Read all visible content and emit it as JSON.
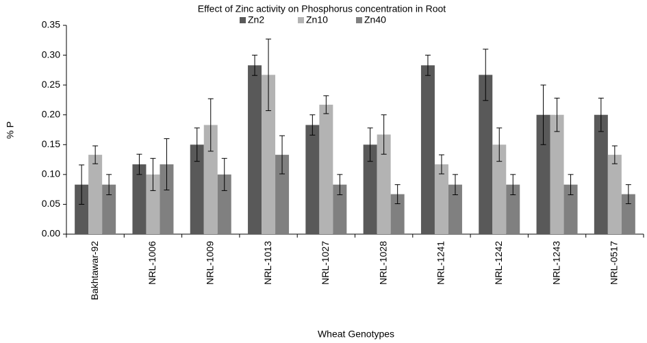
{
  "chart_data": {
    "type": "bar",
    "title": "Effect of Zinc activity on Phosphorus concentration in Root",
    "x_label": "Wheat Genotypes",
    "y_label": "% P",
    "categories": [
      "Bakhtawar-92",
      "NRL-1006",
      "NRL-1009",
      "NRL-1013",
      "NRL-1027",
      "NRL-1028",
      "NRL-1241",
      "NRL-1242",
      "NRL-1243",
      "NRL-0517"
    ],
    "series": [
      {
        "name": "Zn2",
        "color": "#595959",
        "values": [
          0.083,
          0.117,
          0.15,
          0.283,
          0.183,
          0.15,
          0.283,
          0.267,
          0.2,
          0.2
        ],
        "errors": [
          0.033,
          0.017,
          0.028,
          0.017,
          0.017,
          0.028,
          0.017,
          0.043,
          0.05,
          0.028
        ]
      },
      {
        "name": "Zn10",
        "color": "#b3b3b3",
        "values": [
          0.133,
          0.1,
          0.183,
          0.267,
          0.217,
          0.167,
          0.117,
          0.15,
          0.2,
          0.133
        ],
        "errors": [
          0.015,
          0.027,
          0.044,
          0.06,
          0.015,
          0.033,
          0.016,
          0.028,
          0.028,
          0.015
        ]
      },
      {
        "name": "Zn40",
        "color": "#808080",
        "values": [
          0.083,
          0.117,
          0.1,
          0.133,
          0.083,
          0.067,
          0.083,
          0.083,
          0.083,
          0.067
        ],
        "errors": [
          0.017,
          0.043,
          0.027,
          0.032,
          0.017,
          0.016,
          0.017,
          0.017,
          0.017,
          0.016
        ]
      }
    ],
    "ylim": [
      0,
      0.35
    ],
    "yticks": [
      {
        "value": 0,
        "label": "0.00"
      },
      0.05,
      {
        "value": 0.1,
        "label": "0.10"
      },
      0.15,
      {
        "value": 0.2,
        "label": "0.20"
      },
      0.25,
      {
        "value": 0.3,
        "label": "0.30"
      },
      0.35
    ],
    "grid": false,
    "legend": "top"
  }
}
